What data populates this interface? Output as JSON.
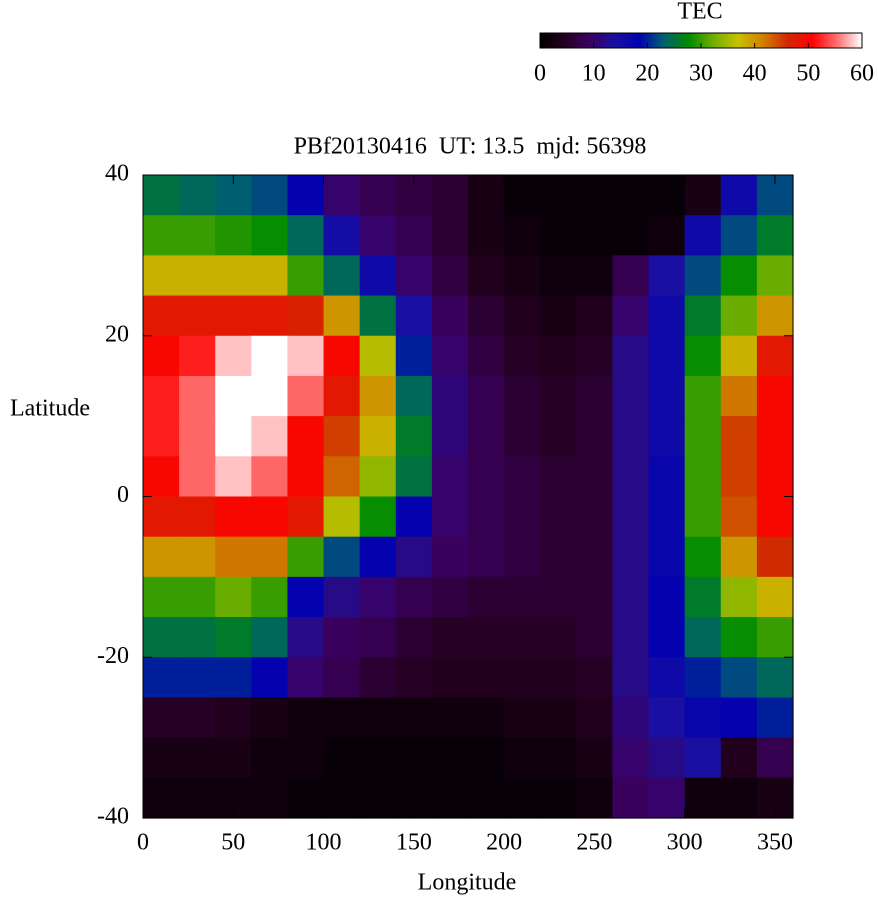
{
  "chart_data": {
    "type": "heatmap",
    "title": "PBf20130416  UT: 13.5  mjd: 56398",
    "x_label": "Longitude",
    "y_label": "Latitude",
    "x": [
      10,
      30,
      50,
      70,
      90,
      110,
      130,
      150,
      170,
      190,
      210,
      230,
      250,
      270,
      290,
      310,
      330,
      350
    ],
    "y": [
      37.5,
      32.5,
      27.5,
      22.5,
      17.5,
      12.5,
      7.5,
      2.5,
      -2.5,
      -7.5,
      -12.5,
      -17.5,
      -22.5,
      -27.5,
      -32.5,
      -37.5
    ],
    "values": [
      [
        25,
        24,
        23,
        22,
        18,
        10,
        8,
        7,
        6,
        3,
        1,
        1,
        1,
        1,
        1,
        3,
        16,
        22
      ],
      [
        30,
        30,
        29,
        28,
        24,
        15,
        10,
        8,
        6,
        3,
        2,
        1,
        1,
        1,
        2,
        16,
        22,
        26
      ],
      [
        38,
        38,
        38,
        38,
        30,
        24,
        16,
        10,
        7,
        4,
        3,
        2,
        2,
        8,
        14,
        22,
        28,
        32
      ],
      [
        48,
        48,
        48,
        48,
        47,
        40,
        25,
        14,
        9,
        6,
        4,
        3,
        4,
        10,
        16,
        26,
        32,
        40
      ],
      [
        50,
        52,
        58,
        60,
        58,
        50,
        36,
        20,
        10,
        7,
        5,
        4,
        5,
        12,
        16,
        28,
        38,
        48
      ],
      [
        52,
        55,
        60,
        60,
        55,
        48,
        40,
        24,
        11,
        8,
        6,
        5,
        6,
        12,
        16,
        30,
        42,
        50
      ],
      [
        52,
        55,
        60,
        58,
        50,
        45,
        38,
        26,
        11,
        8,
        6,
        5,
        6,
        12,
        16,
        30,
        45,
        50
      ],
      [
        50,
        55,
        58,
        55,
        50,
        43,
        34,
        25,
        10,
        8,
        7,
        6,
        6,
        12,
        17,
        30,
        45,
        50
      ],
      [
        48,
        48,
        50,
        50,
        48,
        36,
        28,
        18,
        10,
        8,
        7,
        6,
        6,
        12,
        17,
        30,
        44,
        50
      ],
      [
        40,
        40,
        42,
        42,
        30,
        22,
        18,
        12,
        9,
        8,
        7,
        6,
        6,
        12,
        17,
        28,
        40,
        46
      ],
      [
        30,
        30,
        32,
        30,
        18,
        12,
        10,
        8,
        7,
        6,
        6,
        6,
        6,
        12,
        18,
        26,
        34,
        38
      ],
      [
        25,
        25,
        26,
        24,
        12,
        9,
        8,
        6,
        5,
        5,
        5,
        5,
        6,
        12,
        18,
        24,
        28,
        30
      ],
      [
        20,
        20,
        20,
        18,
        10,
        8,
        6,
        5,
        4,
        4,
        4,
        4,
        5,
        12,
        16,
        20,
        22,
        24
      ],
      [
        5,
        5,
        4,
        3,
        2,
        2,
        2,
        2,
        2,
        2,
        3,
        3,
        4,
        11,
        14,
        17,
        18,
        20
      ],
      [
        3,
        3,
        3,
        2,
        2,
        1,
        1,
        1,
        1,
        1,
        2,
        2,
        3,
        10,
        12,
        14,
        4,
        8
      ],
      [
        2,
        2,
        2,
        2,
        1,
        1,
        1,
        1,
        1,
        1,
        1,
        1,
        2,
        9,
        10,
        2,
        2,
        3
      ]
    ],
    "xlim": [
      0,
      360
    ],
    "xticks": [
      0,
      50,
      100,
      150,
      200,
      250,
      300,
      350
    ],
    "ylim": [
      -40,
      40
    ],
    "yticks": [
      -40,
      -20,
      0,
      20,
      40
    ],
    "colorbar": {
      "label": "TEC",
      "lim": [
        0,
        60
      ],
      "ticks": [
        0,
        10,
        20,
        30,
        40,
        50,
        60
      ],
      "colors": [
        "#000000",
        "#250020",
        "#3a0060",
        "#1a10a0",
        "#0000b0",
        "#006070",
        "#008a00",
        "#70b000",
        "#c8c000",
        "#d08000",
        "#d02800",
        "#ff0000",
        "#ff7070",
        "#ffffff"
      ]
    }
  }
}
